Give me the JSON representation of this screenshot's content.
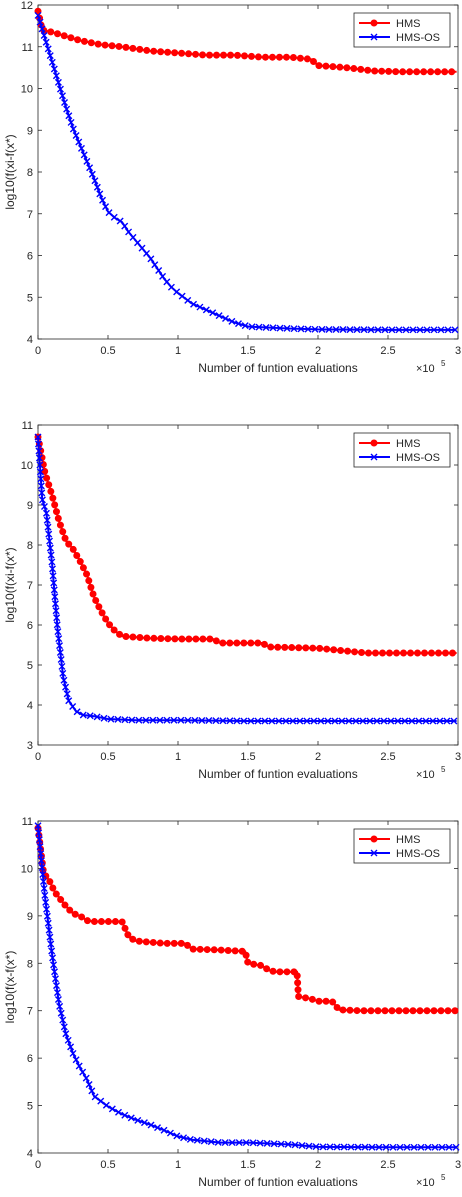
{
  "chart_data": [
    {
      "type": "line",
      "xlabel": "Number of funtion evaluations",
      "ylabel": "log10(f(xi-f(x*)",
      "x_multiplier": "×10",
      "x_exponent": "5",
      "xlim": [
        0,
        3
      ],
      "ylim": [
        4,
        12
      ],
      "xticks": [
        "0",
        "0.5",
        "1",
        "1.5",
        "2",
        "2.5",
        "3"
      ],
      "yticks": [
        "4",
        "5",
        "6",
        "7",
        "8",
        "9",
        "10",
        "11",
        "12"
      ],
      "legend_position": "top-right",
      "series": [
        {
          "name": "HMS",
          "color": "#ff0000",
          "marker": "circle",
          "x": [
            0,
            0.03,
            0.1,
            0.2,
            0.3,
            0.45,
            0.6,
            0.8,
            1.0,
            1.2,
            1.4,
            1.6,
            1.8,
            1.95,
            2.0,
            2.2,
            2.4,
            2.6,
            2.8,
            2.99
          ],
          "y": [
            11.85,
            11.4,
            11.35,
            11.25,
            11.15,
            11.05,
            11.0,
            10.9,
            10.85,
            10.8,
            10.8,
            10.75,
            10.75,
            10.7,
            10.55,
            10.5,
            10.42,
            10.4,
            10.4,
            10.4
          ]
        },
        {
          "name": "HMS-OS",
          "color": "#0000ff",
          "marker": "x",
          "x": [
            0,
            0.05,
            0.1,
            0.15,
            0.2,
            0.25,
            0.3,
            0.35,
            0.4,
            0.45,
            0.5,
            0.55,
            0.6,
            0.65,
            0.7,
            0.75,
            0.8,
            0.85,
            0.9,
            0.95,
            1.0,
            1.1,
            1.2,
            1.3,
            1.4,
            1.5,
            1.6,
            1.8,
            2.0,
            2.5,
            2.99
          ],
          "y": [
            11.75,
            11.2,
            10.65,
            10.1,
            9.55,
            9.05,
            8.65,
            8.25,
            7.85,
            7.4,
            7.05,
            6.9,
            6.8,
            6.55,
            6.35,
            6.15,
            5.95,
            5.7,
            5.45,
            5.25,
            5.1,
            4.85,
            4.7,
            4.55,
            4.4,
            4.3,
            4.28,
            4.25,
            4.23,
            4.22,
            4.22
          ]
        }
      ]
    },
    {
      "type": "line",
      "xlabel": "Number of funtion evaluations",
      "ylabel": "log10(f(xi-f(x*)",
      "x_multiplier": "×10",
      "x_exponent": "5",
      "xlim": [
        0,
        3
      ],
      "ylim": [
        3,
        11
      ],
      "xticks": [
        "0",
        "0.5",
        "1",
        "1.5",
        "2",
        "2.5",
        "3"
      ],
      "yticks": [
        "3",
        "4",
        "5",
        "6",
        "7",
        "8",
        "9",
        "10",
        "11"
      ],
      "legend_position": "top-right",
      "series": [
        {
          "name": "HMS",
          "color": "#ff0000",
          "marker": "circle",
          "x": [
            0,
            0.05,
            0.1,
            0.15,
            0.2,
            0.25,
            0.3,
            0.35,
            0.4,
            0.45,
            0.5,
            0.55,
            0.6,
            0.8,
            1.0,
            1.25,
            1.3,
            1.6,
            1.65,
            2.0,
            2.2,
            2.35,
            2.6,
            2.99
          ],
          "y": [
            10.7,
            9.8,
            9.25,
            8.6,
            8.1,
            7.9,
            7.6,
            7.25,
            6.7,
            6.35,
            6.05,
            5.85,
            5.72,
            5.67,
            5.65,
            5.65,
            5.55,
            5.55,
            5.45,
            5.42,
            5.35,
            5.3,
            5.3,
            5.3
          ]
        },
        {
          "name": "HMS-OS",
          "color": "#0000ff",
          "marker": "x",
          "x": [
            0,
            0.03,
            0.06,
            0.1,
            0.14,
            0.18,
            0.22,
            0.27,
            0.32,
            0.4,
            0.5,
            0.7,
            1.0,
            1.5,
            2.0,
            2.5,
            2.99
          ],
          "y": [
            10.7,
            9.15,
            8.8,
            7.55,
            5.9,
            4.7,
            4.1,
            3.85,
            3.75,
            3.72,
            3.65,
            3.62,
            3.62,
            3.6,
            3.6,
            3.6,
            3.6
          ]
        }
      ]
    },
    {
      "type": "line",
      "xlabel": "Number of funtion evaluations",
      "ylabel": "log10(f(x-f(x*)",
      "x_multiplier": "×10",
      "x_exponent": "5",
      "xlim": [
        0,
        3
      ],
      "ylim": [
        4,
        11
      ],
      "xticks": [
        "0",
        "0.5",
        "1",
        "1.5",
        "2",
        "2.5",
        "3"
      ],
      "yticks": [
        "4",
        "5",
        "6",
        "7",
        "8",
        "9",
        "10",
        "11"
      ],
      "legend_position": "top-right",
      "series": [
        {
          "name": "HMS",
          "color": "#ff0000",
          "marker": "circle",
          "x": [
            0,
            0.04,
            0.08,
            0.12,
            0.16,
            0.2,
            0.25,
            0.3,
            0.35,
            0.4,
            0.6,
            0.65,
            0.7,
            0.9,
            1.05,
            1.1,
            1.3,
            1.48,
            1.5,
            1.6,
            1.65,
            1.7,
            1.85,
            1.86,
            1.95,
            2.0,
            2.1,
            2.15,
            2.3,
            2.99
          ],
          "y": [
            10.85,
            9.9,
            9.75,
            9.5,
            9.35,
            9.2,
            9.05,
            9.0,
            8.9,
            8.88,
            8.88,
            8.55,
            8.47,
            8.42,
            8.42,
            8.3,
            8.28,
            8.25,
            8.0,
            7.95,
            7.85,
            7.82,
            7.82,
            7.3,
            7.25,
            7.2,
            7.2,
            7.02,
            7.0,
            7.0
          ]
        },
        {
          "name": "HMS-OS",
          "color": "#0000ff",
          "marker": "x",
          "x": [
            0,
            0.05,
            0.1,
            0.15,
            0.2,
            0.25,
            0.3,
            0.35,
            0.4,
            0.5,
            0.6,
            0.7,
            0.8,
            0.9,
            1.0,
            1.1,
            1.2,
            1.3,
            1.5,
            1.8,
            2.0,
            2.5,
            2.99
          ],
          "y": [
            10.9,
            9.4,
            8.2,
            7.15,
            6.5,
            6.1,
            5.8,
            5.55,
            5.2,
            4.98,
            4.82,
            4.7,
            4.6,
            4.48,
            4.35,
            4.28,
            4.25,
            4.22,
            4.22,
            4.18,
            4.13,
            4.12,
            4.12
          ]
        }
      ]
    }
  ]
}
